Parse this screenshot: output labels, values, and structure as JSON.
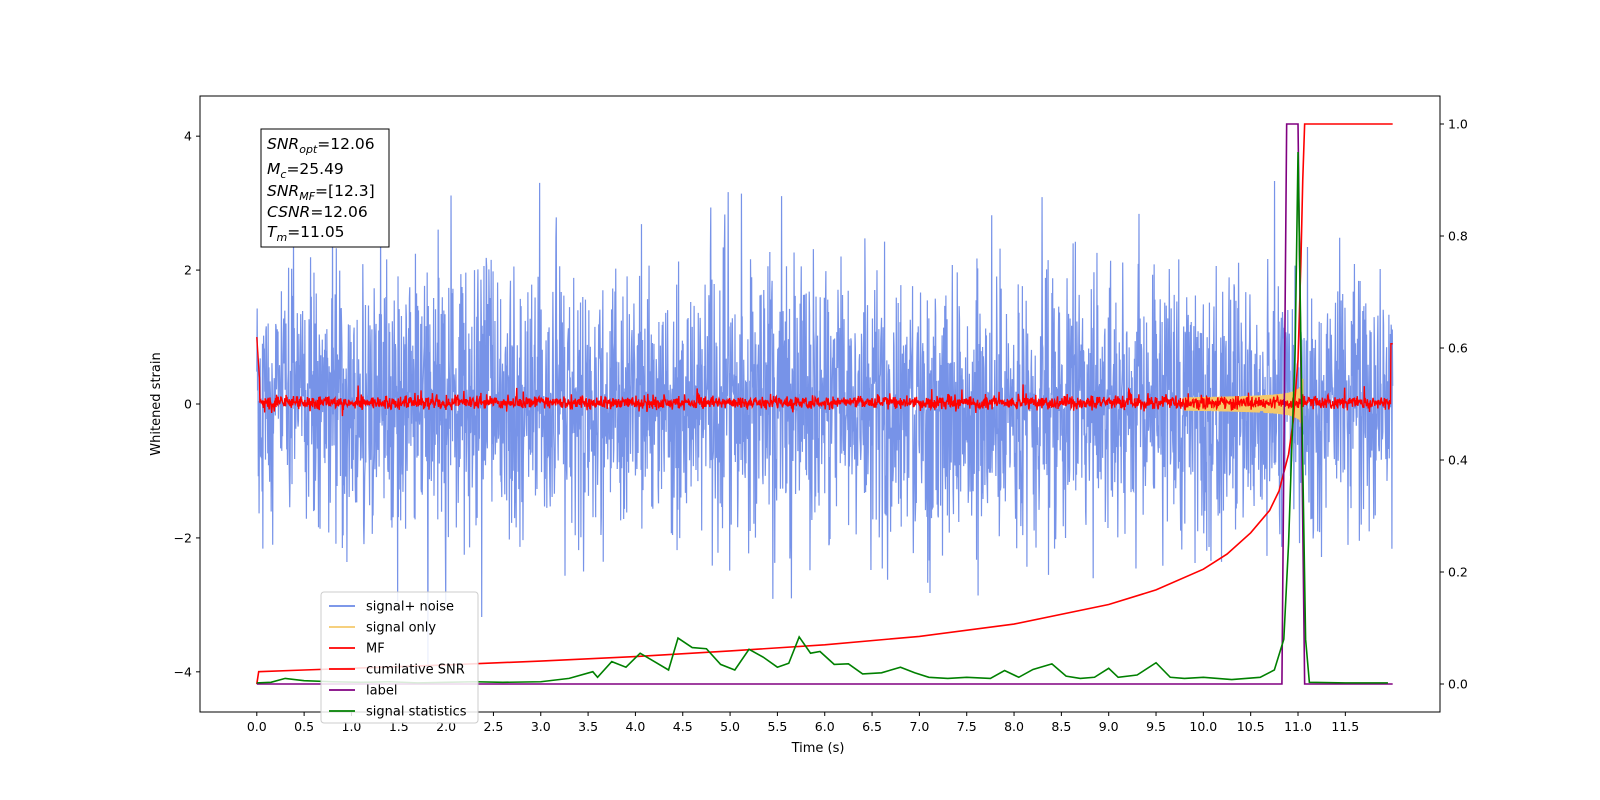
{
  "chart_data": {
    "type": "line",
    "xlabel": "Time (s)",
    "ylabel": "Whitened strain",
    "xlim": [
      -0.6,
      12.5
    ],
    "ylim_left": [
      -4.6,
      4.6
    ],
    "ylim_right": [
      -0.05,
      1.05
    ],
    "x_ticks": [
      "0.0",
      "0.5",
      "1.0",
      "1.5",
      "2.0",
      "2.5",
      "3.0",
      "3.5",
      "4.0",
      "4.5",
      "5.0",
      "5.5",
      "6.0",
      "6.5",
      "7.0",
      "7.5",
      "8.0",
      "8.5",
      "9.0",
      "9.5",
      "10.0",
      "10.5",
      "11.0",
      "11.5"
    ],
    "y_ticks_left": [
      "−4",
      "−2",
      "0",
      "2",
      "4"
    ],
    "y_ticks_right": [
      "0.0",
      "0.2",
      "0.4",
      "0.6",
      "0.8",
      "1.0"
    ],
    "grid": false,
    "legend_position": "lower-left",
    "annotation": {
      "snr_opt": {
        "base": "SNR",
        "sub": "opt",
        "value": "=12.06"
      },
      "mc": {
        "base": "M",
        "sub": "c",
        "value": "=25.49"
      },
      "snr_mf": {
        "base": "SNR",
        "sub": "MF",
        "value": "=[12.3]"
      },
      "csnr": {
        "base": "CSNR",
        "value": "=12.06"
      },
      "tm": {
        "base": "T",
        "sub": "m",
        "value": "=11.05"
      }
    },
    "series": [
      {
        "name": "signal+ noise",
        "color": "#6b8ae6",
        "axis": "left",
        "kind": "noise",
        "duration": 12.0,
        "sigma": 1.0
      },
      {
        "name": "signal only",
        "color": "#f4c96b",
        "axis": "left",
        "kind": "chirp",
        "merger_time": 11.05
      },
      {
        "name": "MF",
        "color": "#ff0000",
        "axis": "left",
        "kind": "matched-filter",
        "points": [
          [
            0.0,
            1.0
          ],
          [
            0.02,
            0.35
          ],
          [
            12.0,
            0.0
          ]
        ]
      },
      {
        "name": "cumilative SNR",
        "color": "#ff0000",
        "axis": "right",
        "points": [
          [
            0.0,
            0.0
          ],
          [
            0.02,
            0.022
          ],
          [
            0.5,
            0.025
          ],
          [
            1.0,
            0.028
          ],
          [
            2.0,
            0.034
          ],
          [
            3.0,
            0.041
          ],
          [
            4.0,
            0.049
          ],
          [
            5.0,
            0.059
          ],
          [
            6.0,
            0.07
          ],
          [
            7.0,
            0.085
          ],
          [
            8.0,
            0.107
          ],
          [
            9.0,
            0.142
          ],
          [
            9.5,
            0.168
          ],
          [
            10.0,
            0.205
          ],
          [
            10.25,
            0.232
          ],
          [
            10.5,
            0.27
          ],
          [
            10.7,
            0.31
          ],
          [
            10.8,
            0.345
          ],
          [
            10.9,
            0.41
          ],
          [
            10.95,
            0.47
          ],
          [
            11.0,
            0.58
          ],
          [
            11.03,
            0.75
          ],
          [
            11.05,
            0.9
          ],
          [
            11.07,
            1.0
          ],
          [
            12.0,
            1.0
          ]
        ]
      },
      {
        "name": "label",
        "color": "#800080",
        "axis": "right",
        "points": [
          [
            0.0,
            0.0
          ],
          [
            10.83,
            0.0
          ],
          [
            10.88,
            1.0
          ],
          [
            11.0,
            1.0
          ],
          [
            11.07,
            0.0
          ],
          [
            12.0,
            0.0
          ]
        ]
      },
      {
        "name": "signal statistics",
        "color": "#008000",
        "axis": "right",
        "points": [
          [
            0.0,
            0.002
          ],
          [
            0.15,
            0.003
          ],
          [
            0.3,
            0.01
          ],
          [
            0.5,
            0.006
          ],
          [
            0.8,
            0.004
          ],
          [
            1.1,
            0.003
          ],
          [
            1.4,
            0.004
          ],
          [
            1.7,
            0.002
          ],
          [
            2.0,
            0.003
          ],
          [
            2.3,
            0.004
          ],
          [
            2.6,
            0.003
          ],
          [
            3.0,
            0.004
          ],
          [
            3.3,
            0.01
          ],
          [
            3.55,
            0.022
          ],
          [
            3.6,
            0.012
          ],
          [
            3.75,
            0.04
          ],
          [
            3.9,
            0.03
          ],
          [
            4.05,
            0.055
          ],
          [
            4.2,
            0.04
          ],
          [
            4.35,
            0.025
          ],
          [
            4.45,
            0.082
          ],
          [
            4.6,
            0.065
          ],
          [
            4.75,
            0.063
          ],
          [
            4.9,
            0.035
          ],
          [
            5.05,
            0.025
          ],
          [
            5.2,
            0.062
          ],
          [
            5.35,
            0.048
          ],
          [
            5.5,
            0.03
          ],
          [
            5.62,
            0.037
          ],
          [
            5.73,
            0.084
          ],
          [
            5.85,
            0.055
          ],
          [
            5.95,
            0.058
          ],
          [
            6.1,
            0.035
          ],
          [
            6.25,
            0.036
          ],
          [
            6.4,
            0.018
          ],
          [
            6.6,
            0.02
          ],
          [
            6.8,
            0.03
          ],
          [
            6.95,
            0.02
          ],
          [
            7.1,
            0.012
          ],
          [
            7.3,
            0.01
          ],
          [
            7.5,
            0.012
          ],
          [
            7.75,
            0.01
          ],
          [
            7.9,
            0.024
          ],
          [
            8.05,
            0.012
          ],
          [
            8.2,
            0.026
          ],
          [
            8.4,
            0.036
          ],
          [
            8.55,
            0.014
          ],
          [
            8.7,
            0.01
          ],
          [
            8.85,
            0.012
          ],
          [
            9.0,
            0.028
          ],
          [
            9.1,
            0.012
          ],
          [
            9.3,
            0.016
          ],
          [
            9.5,
            0.038
          ],
          [
            9.65,
            0.012
          ],
          [
            9.8,
            0.01
          ],
          [
            10.0,
            0.012
          ],
          [
            10.3,
            0.008
          ],
          [
            10.6,
            0.012
          ],
          [
            10.75,
            0.025
          ],
          [
            10.85,
            0.08
          ],
          [
            10.9,
            0.25
          ],
          [
            10.97,
            0.6
          ],
          [
            11.0,
            0.95
          ],
          [
            11.04,
            0.5
          ],
          [
            11.08,
            0.08
          ],
          [
            11.12,
            0.003
          ],
          [
            11.5,
            0.002
          ],
          [
            11.95,
            0.002
          ]
        ]
      }
    ]
  }
}
